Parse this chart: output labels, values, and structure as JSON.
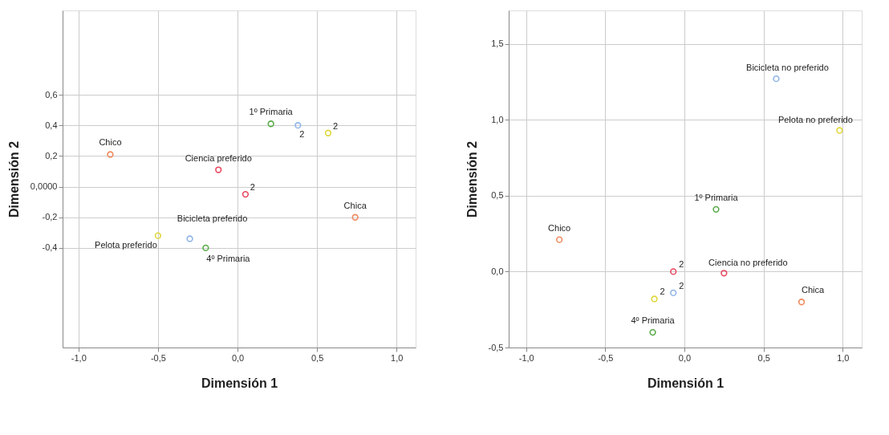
{
  "chart_data": [
    {
      "type": "scatter",
      "xlabel": "Dimensión 1",
      "ylabel": "Dimensión 2",
      "marker": "circle",
      "grid": true,
      "xlim": [
        -1.1,
        1.12
      ],
      "ylim": [
        -1.05,
        1.15
      ],
      "xticks": [
        {
          "value": -1.0,
          "label": "-1,0"
        },
        {
          "value": -0.5,
          "label": "-0,5"
        },
        {
          "value": 0.0,
          "label": "0,0"
        },
        {
          "value": 0.5,
          "label": "0,5"
        },
        {
          "value": 1.0,
          "label": "1,0"
        }
      ],
      "yticks": [
        {
          "value": -0.4,
          "label": "-0,4"
        },
        {
          "value": -0.2,
          "label": "-0,2"
        },
        {
          "value": 0.0,
          "label": "0,0000"
        },
        {
          "value": 0.2,
          "label": "0,2"
        },
        {
          "value": 0.4,
          "label": "0,4"
        },
        {
          "value": 0.6,
          "label": "0,6"
        }
      ],
      "series": [
        {
          "color": "#f08a5d",
          "x": [
            -0.8,
            0.74
          ],
          "values": [
            0.21,
            -0.2
          ]
        },
        {
          "color": "#e8485f",
          "x": [
            -0.12,
            0.05
          ],
          "values": [
            0.11,
            -0.05
          ]
        },
        {
          "color": "#5aab4a",
          "x": [
            0.21,
            -0.2
          ],
          "values": [
            0.41,
            -0.4
          ]
        },
        {
          "color": "#8fb4e8",
          "x": [
            0.38,
            -0.3
          ],
          "values": [
            0.4,
            -0.34
          ]
        },
        {
          "color": "#e0d83a",
          "x": [
            0.57,
            -0.5
          ],
          "values": [
            0.35,
            -0.32
          ]
        }
      ],
      "annotations": [
        {
          "text": "Chico",
          "x": -0.8,
          "y": 0.21
        },
        {
          "text": "Ciencia preferido",
          "x": -0.12,
          "y": 0.11
        },
        {
          "text": "2",
          "x": 0.05,
          "y": -0.05
        },
        {
          "text": "1º Primaria",
          "x": 0.21,
          "y": 0.41
        },
        {
          "text": "2",
          "x": 0.38,
          "y": 0.4
        },
        {
          "text": "2",
          "x": 0.57,
          "y": 0.35
        },
        {
          "text": "Chica",
          "x": 0.74,
          "y": -0.2
        },
        {
          "text": "Bicicleta preferido",
          "x": -0.3,
          "y": -0.34
        },
        {
          "text": "Pelota preferido",
          "x": -0.5,
          "y": -0.32
        },
        {
          "text": "4º Primaria",
          "x": -0.2,
          "y": -0.4
        }
      ]
    },
    {
      "type": "scatter",
      "xlabel": "Dimensión 1",
      "ylabel": "Dimensión 2",
      "marker": "circle",
      "grid": true,
      "xlim": [
        -1.11,
        1.12
      ],
      "ylim": [
        -0.5,
        1.72
      ],
      "xticks": [
        {
          "value": -1.0,
          "label": "-1,0"
        },
        {
          "value": -0.5,
          "label": "-0,5"
        },
        {
          "value": 0.0,
          "label": "0,0"
        },
        {
          "value": 0.5,
          "label": "0,5"
        },
        {
          "value": 1.0,
          "label": "1,0"
        }
      ],
      "yticks": [
        {
          "value": -0.5,
          "label": "-0,5"
        },
        {
          "value": 0.0,
          "label": "0,0"
        },
        {
          "value": 0.5,
          "label": "0,5"
        },
        {
          "value": 1.0,
          "label": "1,0"
        },
        {
          "value": 1.5,
          "label": "1,5"
        }
      ],
      "series": [
        {
          "color": "#f08a5d",
          "x": [
            -0.79,
            0.74
          ],
          "values": [
            0.21,
            -0.2
          ]
        },
        {
          "color": "#e8485f",
          "x": [
            -0.07,
            0.25
          ],
          "values": [
            0.0,
            -0.01
          ]
        },
        {
          "color": "#5aab4a",
          "x": [
            0.2,
            -0.2
          ],
          "values": [
            0.41,
            -0.4
          ]
        },
        {
          "color": "#8fb4e8",
          "x": [
            0.58,
            -0.07
          ],
          "values": [
            1.27,
            -0.14
          ]
        },
        {
          "color": "#e0d83a",
          "x": [
            0.98,
            -0.19
          ],
          "values": [
            0.93,
            -0.18
          ]
        }
      ],
      "annotations": [
        {
          "text": "Chico",
          "x": -0.79,
          "y": 0.21
        },
        {
          "text": "Chica",
          "x": 0.74,
          "y": -0.2
        },
        {
          "text": "2",
          "x": -0.07,
          "y": 0.0
        },
        {
          "text": "Ciencia no preferido",
          "x": 0.25,
          "y": -0.01
        },
        {
          "text": "1º Primaria",
          "x": 0.2,
          "y": 0.41
        },
        {
          "text": "4º Primaria",
          "x": -0.2,
          "y": -0.4
        },
        {
          "text": "Bicicleta no preferido",
          "x": 0.58,
          "y": 1.27
        },
        {
          "text": "2",
          "x": -0.07,
          "y": -0.14
        },
        {
          "text": "Pelota no preferido",
          "x": 0.98,
          "y": 0.93
        },
        {
          "text": "2",
          "x": -0.19,
          "y": -0.18
        }
      ]
    }
  ]
}
